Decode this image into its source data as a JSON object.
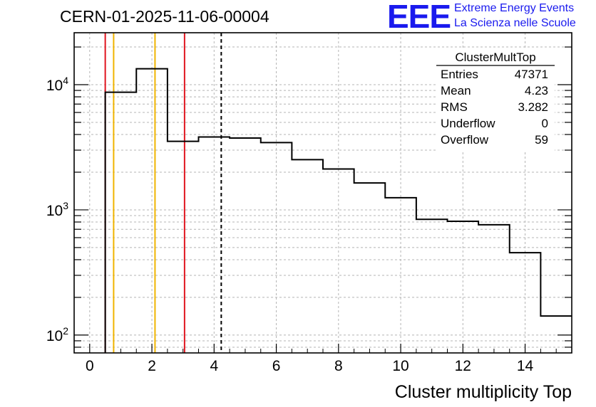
{
  "title": "CERN-01-2025-11-06-00004",
  "logo": {
    "mark": "EEE",
    "line1": "Extreme Energy Events",
    "line2": "La Scienza nelle Scuole"
  },
  "colors": {
    "histogram": "#000000",
    "red_marker": "#e0141e",
    "orange_marker": "#f0b400",
    "mean_marker": "#000000",
    "grid": "#b4b4b4",
    "logo": "#1a1aee"
  },
  "chart_data": {
    "type": "histogram",
    "title": "CERN-01-2025-11-06-00004",
    "xlabel": "Cluster multiplicity Top",
    "ylabel": "",
    "y_scale": "log",
    "xlim": [
      -0.5,
      15.5
    ],
    "ylim": [
      72,
      26000
    ],
    "grid": true,
    "x_ticks": [
      "0",
      "2",
      "4",
      "6",
      "8",
      "10",
      "12",
      "14"
    ],
    "y_ticks": [
      {
        "base": "10",
        "exp": "2",
        "value": 100
      },
      {
        "base": "10",
        "exp": "3",
        "value": 1000
      },
      {
        "base": "10",
        "exp": "4",
        "value": 10000
      }
    ],
    "bins": [
      {
        "low": 0.5,
        "high": 1.5,
        "count": 8700
      },
      {
        "low": 1.5,
        "high": 2.5,
        "count": 13400
      },
      {
        "low": 2.5,
        "high": 3.5,
        "count": 3530
      },
      {
        "low": 3.5,
        "high": 4.5,
        "count": 3820
      },
      {
        "low": 4.5,
        "high": 5.5,
        "count": 3750
      },
      {
        "low": 5.5,
        "high": 6.5,
        "count": 3450
      },
      {
        "low": 6.5,
        "high": 7.5,
        "count": 2520
      },
      {
        "low": 7.5,
        "high": 8.5,
        "count": 2120
      },
      {
        "low": 8.5,
        "high": 9.5,
        "count": 1640
      },
      {
        "low": 9.5,
        "high": 10.5,
        "count": 1250
      },
      {
        "low": 10.5,
        "high": 11.5,
        "count": 840
      },
      {
        "low": 11.5,
        "high": 12.5,
        "count": 810
      },
      {
        "low": 12.5,
        "high": 13.5,
        "count": 760
      },
      {
        "low": 13.5,
        "high": 14.5,
        "count": 455
      },
      {
        "low": 14.5,
        "high": 15.5,
        "count": 142
      }
    ],
    "vertical_lines": [
      {
        "x": 0.5,
        "color": "red",
        "style": "solid"
      },
      {
        "x": 0.77,
        "color": "orange",
        "style": "solid"
      },
      {
        "x": 2.1,
        "color": "orange",
        "style": "solid"
      },
      {
        "x": 3.05,
        "color": "red",
        "style": "solid"
      },
      {
        "x": 4.23,
        "color": "black",
        "style": "dashed"
      }
    ],
    "stats": {
      "name": "ClusterMultTop",
      "rows": [
        {
          "label": "Entries",
          "value": "47371"
        },
        {
          "label": "Mean",
          "value": "4.23"
        },
        {
          "label": "RMS",
          "value": "3.282"
        },
        {
          "label": "Underflow",
          "value": "0"
        },
        {
          "label": "Overflow",
          "value": "59"
        }
      ]
    }
  }
}
